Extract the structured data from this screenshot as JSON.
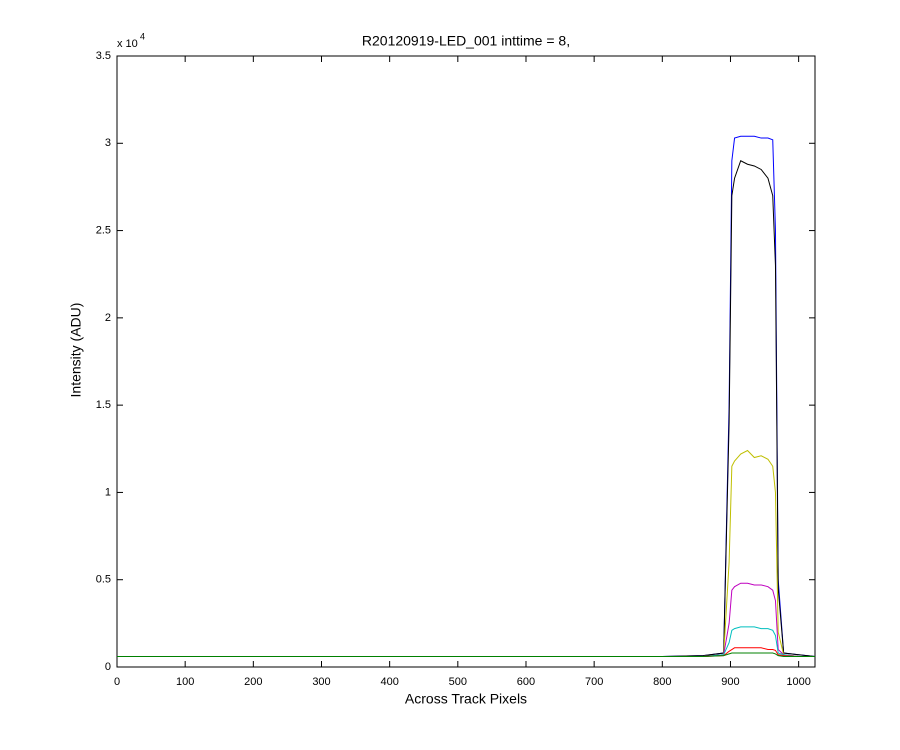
{
  "chart_data": {
    "type": "line",
    "title": "R20120919-LED_001 inttime = 8,",
    "x_label": "Across Track Pixels",
    "y_label": "Intensity (ADU)",
    "y_multiplier": "x 10",
    "y_exponent": "4",
    "x": [
      0,
      800,
      860,
      890,
      898,
      902,
      906,
      915,
      925,
      935,
      945,
      955,
      962,
      966,
      970,
      978,
      1000,
      1024
    ],
    "series": [
      {
        "color": "#0000ff",
        "values": [
          0.06,
          0.06,
          0.065,
          0.08,
          1.5,
          2.9,
          3.03,
          3.04,
          3.04,
          3.04,
          3.03,
          3.03,
          3.02,
          2.5,
          0.5,
          0.08,
          0.07,
          0.06
        ]
      },
      {
        "color": "#000000",
        "values": [
          0.06,
          0.06,
          0.065,
          0.08,
          1.4,
          2.7,
          2.8,
          2.9,
          2.88,
          2.87,
          2.85,
          2.8,
          2.7,
          2.3,
          0.45,
          0.08,
          0.07,
          0.06
        ]
      },
      {
        "color": "#bfbf00",
        "values": [
          0.06,
          0.06,
          0.06,
          0.07,
          0.6,
          1.15,
          1.18,
          1.22,
          1.24,
          1.2,
          1.21,
          1.19,
          1.15,
          1.0,
          0.2,
          0.07,
          0.06,
          0.06
        ]
      },
      {
        "color": "#bf00bf",
        "values": [
          0.06,
          0.06,
          0.06,
          0.07,
          0.25,
          0.44,
          0.46,
          0.48,
          0.48,
          0.47,
          0.47,
          0.46,
          0.44,
          0.38,
          0.1,
          0.07,
          0.06,
          0.06
        ]
      },
      {
        "color": "#00bfbf",
        "values": [
          0.06,
          0.06,
          0.06,
          0.07,
          0.14,
          0.21,
          0.22,
          0.23,
          0.23,
          0.23,
          0.22,
          0.22,
          0.21,
          0.18,
          0.08,
          0.07,
          0.06,
          0.06
        ]
      },
      {
        "color": "#ff0000",
        "values": [
          0.06,
          0.06,
          0.06,
          0.065,
          0.09,
          0.1,
          0.11,
          0.11,
          0.11,
          0.11,
          0.11,
          0.1,
          0.1,
          0.095,
          0.07,
          0.065,
          0.06,
          0.06
        ]
      },
      {
        "color": "#008000",
        "values": [
          0.06,
          0.06,
          0.06,
          0.065,
          0.075,
          0.08,
          0.08,
          0.08,
          0.08,
          0.08,
          0.08,
          0.08,
          0.08,
          0.075,
          0.065,
          0.06,
          0.06,
          0.06
        ]
      }
    ],
    "xlim": [
      0,
      1024
    ],
    "xticks": [
      0,
      100,
      200,
      300,
      400,
      500,
      600,
      700,
      800,
      900,
      1000
    ],
    "ylim": [
      0,
      3.5
    ],
    "yticks": [
      0,
      0.5,
      1,
      1.5,
      2,
      2.5,
      3,
      3.5
    ],
    "grid": false
  }
}
